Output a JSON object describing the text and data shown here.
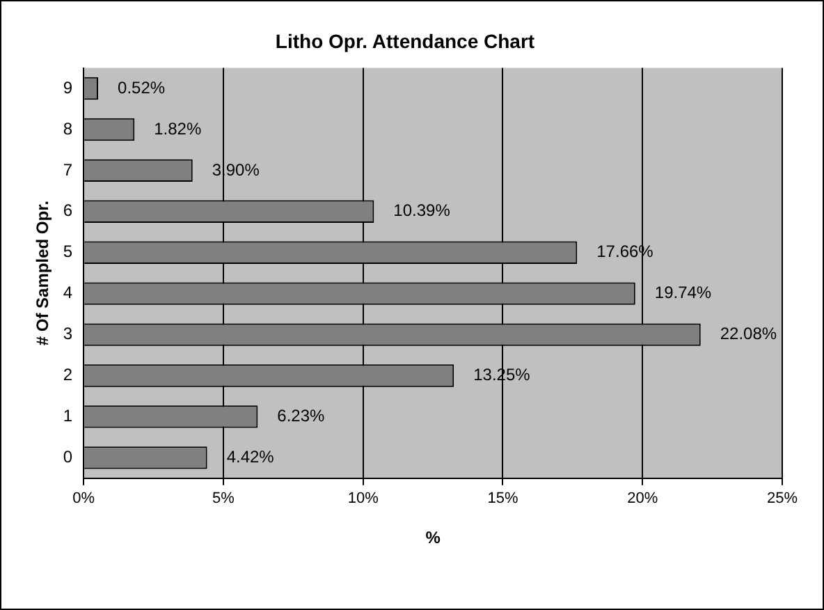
{
  "chart_data": {
    "type": "bar",
    "orientation": "horizontal",
    "title": "Litho Opr. Attendance Chart",
    "xlabel": "%",
    "ylabel": "# Of Sampled Opr.",
    "categories": [
      "9",
      "8",
      "7",
      "6",
      "5",
      "4",
      "3",
      "2",
      "1",
      "0"
    ],
    "values": [
      0.52,
      1.82,
      3.9,
      10.39,
      17.66,
      19.74,
      22.08,
      13.25,
      6.23,
      4.42
    ],
    "value_labels": [
      "0.52%",
      "1.82%",
      "3.90%",
      "10.39%",
      "17.66%",
      "19.74%",
      "22.08%",
      "13.25%",
      "6.23%",
      "4.42%"
    ],
    "color": "#808080",
    "xlim": [
      0,
      25
    ],
    "xticks": [
      {
        "value": 0,
        "label": "0%"
      },
      {
        "value": 5,
        "label": "5%"
      },
      {
        "value": 10,
        "label": "10%"
      },
      {
        "value": 15,
        "label": "15%"
      },
      {
        "value": 20,
        "label": "20%"
      },
      {
        "value": 25,
        "label": "25%"
      }
    ],
    "grid": "x",
    "legend": false
  }
}
